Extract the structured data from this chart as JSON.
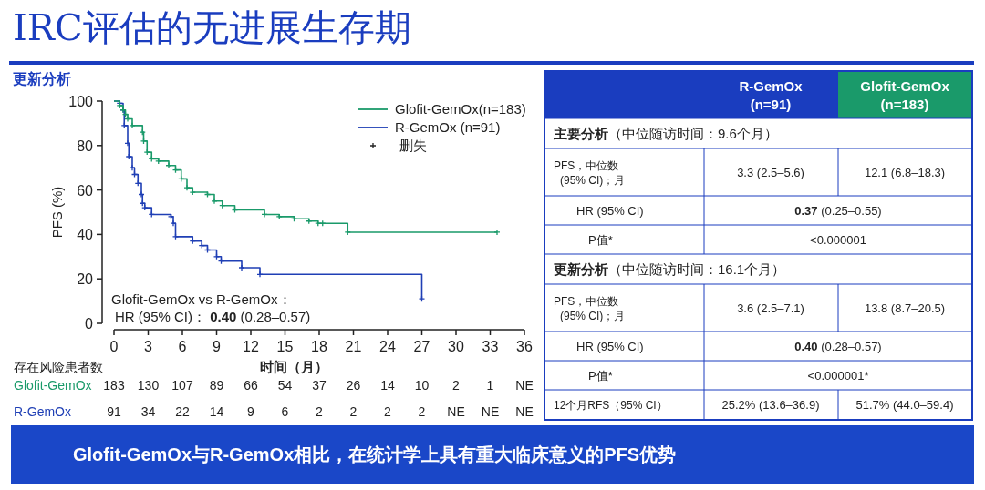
{
  "chart_data": {
    "type": "step",
    "title": "IRC评估的无进展生存期",
    "subtitle": "更新分析",
    "xlabel": "时间（月）",
    "ylabel": "PFS (%)",
    "xlim": [
      0,
      36
    ],
    "xticks": [
      0,
      3,
      6,
      9,
      12,
      15,
      18,
      21,
      24,
      27,
      30,
      33,
      36
    ],
    "ylim": [
      0,
      100
    ],
    "yticks": [
      0,
      20,
      40,
      60,
      80,
      100
    ],
    "legend": "top right",
    "marker": "cross",
    "series": [
      {
        "name": "Glofit-GemOx(n=183)",
        "color": "#1a9a6a",
        "x": [
          0,
          0.5,
          0.8,
          1.0,
          1.2,
          1.6,
          2.5,
          2.6,
          2.9,
          3.3,
          3.9,
          4.8,
          5.4,
          5.9,
          6.4,
          6.9,
          8.2,
          8.8,
          9.5,
          10.6,
          13.2,
          14.5,
          15.8,
          17.1,
          17.9,
          18.3,
          20.5,
          33.6
        ],
        "values": [
          100,
          98,
          96,
          94,
          92,
          89,
          86,
          82,
          77,
          74,
          73,
          71,
          69,
          65,
          61,
          59,
          58,
          55,
          53,
          51,
          49,
          48,
          47,
          46,
          45,
          45,
          41,
          41
        ]
      },
      {
        "name": "R-GemOx (n=91)",
        "color": "#1f3fb5",
        "x": [
          0,
          0.5,
          0.8,
          0.9,
          1.2,
          1.3,
          1.6,
          1.8,
          2.1,
          2.4,
          2.5,
          2.7,
          3.3,
          5.0,
          5.2,
          5.4,
          6.9,
          7.7,
          8.2,
          9.0,
          9.4,
          11.2,
          12.8,
          27.0
        ],
        "values": [
          100,
          99,
          96,
          89,
          81,
          75,
          70,
          67,
          63,
          58,
          54,
          52,
          49,
          48,
          45,
          39,
          37,
          35,
          33,
          30,
          28,
          25,
          22,
          11
        ]
      }
    ],
    "annotations": [
      "删失",
      "Glofit-GemOx vs R-GemOx：",
      "HR (95% CI)：  **0.40** (0.28–0.57)",
      "存在风险患者数",
      "Glofit-GemOx",
      "183",
      "130",
      "107",
      "89",
      "66",
      "54",
      "37",
      "26",
      "14",
      "10",
      "2",
      "1",
      "NE",
      "R-GemOx",
      "91",
      "34",
      "22",
      "14",
      "9",
      "6",
      "2",
      "2",
      "2",
      "2",
      "NE",
      "NE",
      "NE",
      "R-GemOx",
      "(n=91)",
      "Glofit-GemOx",
      "(n=183)",
      "**主要分析**（中位随访时间：9.6个月）",
      "PFS，中位数",
      "(95% CI)；月",
      "3.3 (2.5–5.6)",
      "12.1 (6.8–18.3)",
      "HR (95% CI)",
      "**0.37** (0.25–0.55)",
      "P值*",
      "<0.000001",
      "**更新分析**（中位随访时间：16.1个月）",
      "PFS，中位数",
      "(95% CI)；月",
      "3.6 (2.5–7.1)",
      "13.8 (8.7–20.5)",
      "HR (95% CI)",
      "**0.40** (0.28–0.57)",
      "P值*",
      "<0.000001*",
      "12个月RFS（95% CI）",
      "25.2% (13.6–36.9)",
      "51.7% (44.0–59.4)",
      "Glofit-GemOx与R-GemOx相比，在统计学上具有重大临床意义的PFS优势"
    ]
  }
}
